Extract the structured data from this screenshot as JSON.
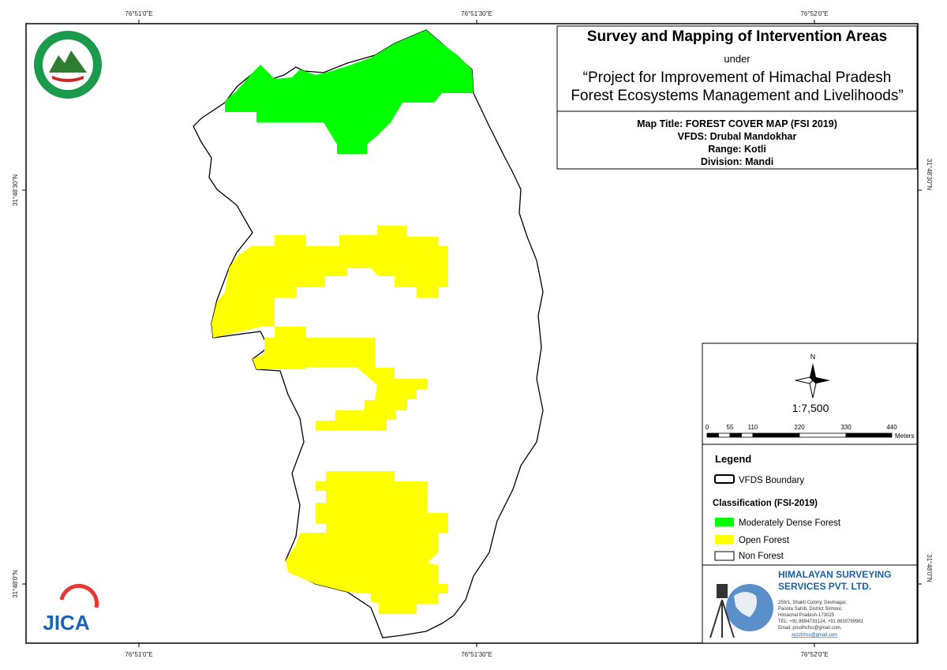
{
  "coordinates": {
    "longitude_top": [
      "76°51'0\"E",
      "76°51'30\"E",
      "76°52'0\"E"
    ],
    "longitude_bottom": [
      "76°51'0\"E",
      "76°51'30\"E",
      "76°52'0\"E"
    ],
    "latitude_left": [
      "31°48'30\"N",
      "31°48'0\"N"
    ],
    "latitude_right": [
      "31°48'30\"N",
      "31°48'0\"N"
    ]
  },
  "header": {
    "title": "Survey and Mapping of Intervention Areas",
    "under": "under",
    "project_line1": "“Project for Improvement of Himachal Pradesh",
    "project_line2": "Forest Ecosystems Management and Livelihoods”"
  },
  "map_info": {
    "map_title": "Map Title: FOREST COVER MAP (FSI 2019)",
    "vfds": "VFDS: Drubal Mandokhar",
    "range": "Range: Kotli",
    "division": "Division: Mandi"
  },
  "north_arrow": "N",
  "scale": "1:7,500",
  "scale_bar": {
    "ticks": [
      0,
      55,
      110,
      220,
      330,
      440
    ],
    "unit": "Meters"
  },
  "legend": {
    "title": "Legend",
    "boundary": "VFDS Boundary",
    "classification_title": "Classification (FSI-2019)",
    "items": [
      "Moderately Dense Forest",
      "Open Forest",
      "Non Forest"
    ]
  },
  "company": {
    "name_line1": "HIMALAYAN SURVEYING",
    "name_line2": "SERVICES PVT. LTD.",
    "address": [
      "259/1, Shakti Colony, Devinagar,",
      "Paonta Sahib, District Sirmour,",
      "Himachal Pradesh-173025",
      "TEL: +91 8894733124, +91 8630799961",
      "Email: prsolhcfss@gmail.com,",
      "xyzzhhss@gmail.com"
    ]
  },
  "logos": {
    "jica": "JICA"
  }
}
